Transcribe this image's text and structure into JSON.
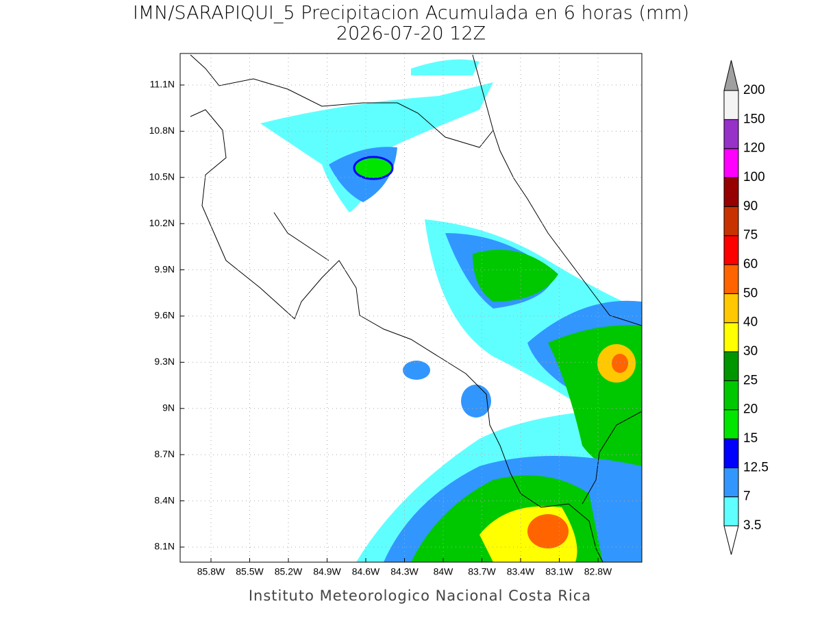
{
  "header": {
    "title": "IMN/SARAPIQUI_5 Precipitacion Acumulada en 6 horas (mm)",
    "subtitle": "2026-07-20 12Z"
  },
  "map": {
    "lon_ticks": [
      {
        "value": -85.8,
        "label": "85.8W"
      },
      {
        "value": -85.5,
        "label": "85.5W"
      },
      {
        "value": -85.2,
        "label": "85.2W"
      },
      {
        "value": -84.9,
        "label": "84.9W"
      },
      {
        "value": -84.6,
        "label": "84.6W"
      },
      {
        "value": -84.3,
        "label": "84.3W"
      },
      {
        "value": -84,
        "label": "84W"
      },
      {
        "value": -83.7,
        "label": "83.7W"
      },
      {
        "value": -83.4,
        "label": "83.4W"
      },
      {
        "value": -83.1,
        "label": "83.1W"
      },
      {
        "value": -82.8,
        "label": "82.8W"
      }
    ],
    "lat_ticks": [
      {
        "value": 8.1,
        "label": "8.1N"
      },
      {
        "value": 8.4,
        "label": "8.4N"
      },
      {
        "value": 8.7,
        "label": "8.7N"
      },
      {
        "value": 9,
        "label": "9N"
      },
      {
        "value": 9.3,
        "label": "9.3N"
      },
      {
        "value": 9.6,
        "label": "9.6N"
      },
      {
        "value": 9.9,
        "label": "9.9N"
      },
      {
        "value": 10.2,
        "label": "10.2N"
      },
      {
        "value": 10.5,
        "label": "10.5N"
      },
      {
        "value": 10.8,
        "label": "10.8N"
      },
      {
        "value": 11.1,
        "label": "11.1N"
      }
    ],
    "grid": true
  },
  "colorbar": {
    "levels": [
      3.5,
      7,
      12.5,
      15,
      20,
      25,
      30,
      40,
      50,
      60,
      75,
      90,
      100,
      120,
      150,
      200
    ],
    "colors": [
      "#60ffff",
      "#3296ff",
      "#0000ff",
      "#00e600",
      "#00c800",
      "#009600",
      "#ffff00",
      "#ffc800",
      "#ff6400",
      "#ff0000",
      "#c83200",
      "#960000",
      "#ff00ff",
      "#9632c8",
      "#f4f4f4"
    ],
    "under_color": "#ffffff",
    "over_color": "#a0a0a0"
  },
  "footer": "Instituto Meteorologico Nacional Costa Rica"
}
